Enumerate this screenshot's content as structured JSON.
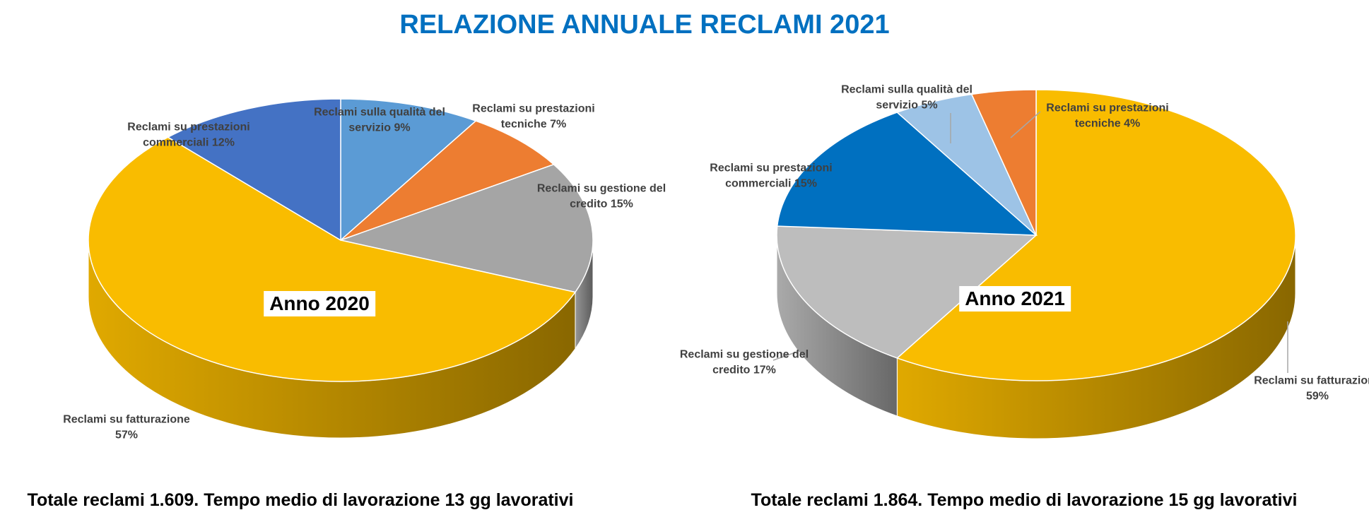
{
  "title": "RELAZIONE ANNUALE RECLAMI 2021",
  "chart_data": [
    {
      "type": "pie3d",
      "center_label": "Anno 2020",
      "caption": "Totale reclami 1.609. Tempo medio di lavorazione 13 gg lavorativi",
      "categories": [
        "Reclami sulla qualità del servizio",
        "Reclami su prestazioni tecniche",
        "Reclami su gestione del credito",
        "Reclami su fatturazione",
        "Reclami su prestazioni commerciali"
      ],
      "values": [
        9,
        7,
        15,
        57,
        12
      ],
      "value_labels": [
        "9%",
        "7%",
        "15%",
        "57%",
        "12%"
      ],
      "colors": [
        "#5b9bd5",
        "#ed7d31",
        "#a5a5a5",
        "#f9bc00",
        "#4472c4"
      ]
    },
    {
      "type": "pie3d",
      "center_label": "Anno 2021",
      "caption": "Totale reclami 1.864. Tempo medio di lavorazione 15 gg lavorativi",
      "categories": [
        "Reclami su fatturazione",
        "Reclami su gestione del credito",
        "Reclami su prestazioni commerciali",
        "Reclami sulla qualità del servizio",
        "Reclami su prestazioni tecniche"
      ],
      "values": [
        59,
        17,
        15,
        5,
        4
      ],
      "value_labels": [
        "59%",
        "17%",
        "15%",
        "5%",
        "4%"
      ],
      "colors": [
        "#f9bc00",
        "#bdbdbd",
        "#0070c0",
        "#9dc3e6",
        "#ed7d31"
      ]
    }
  ]
}
